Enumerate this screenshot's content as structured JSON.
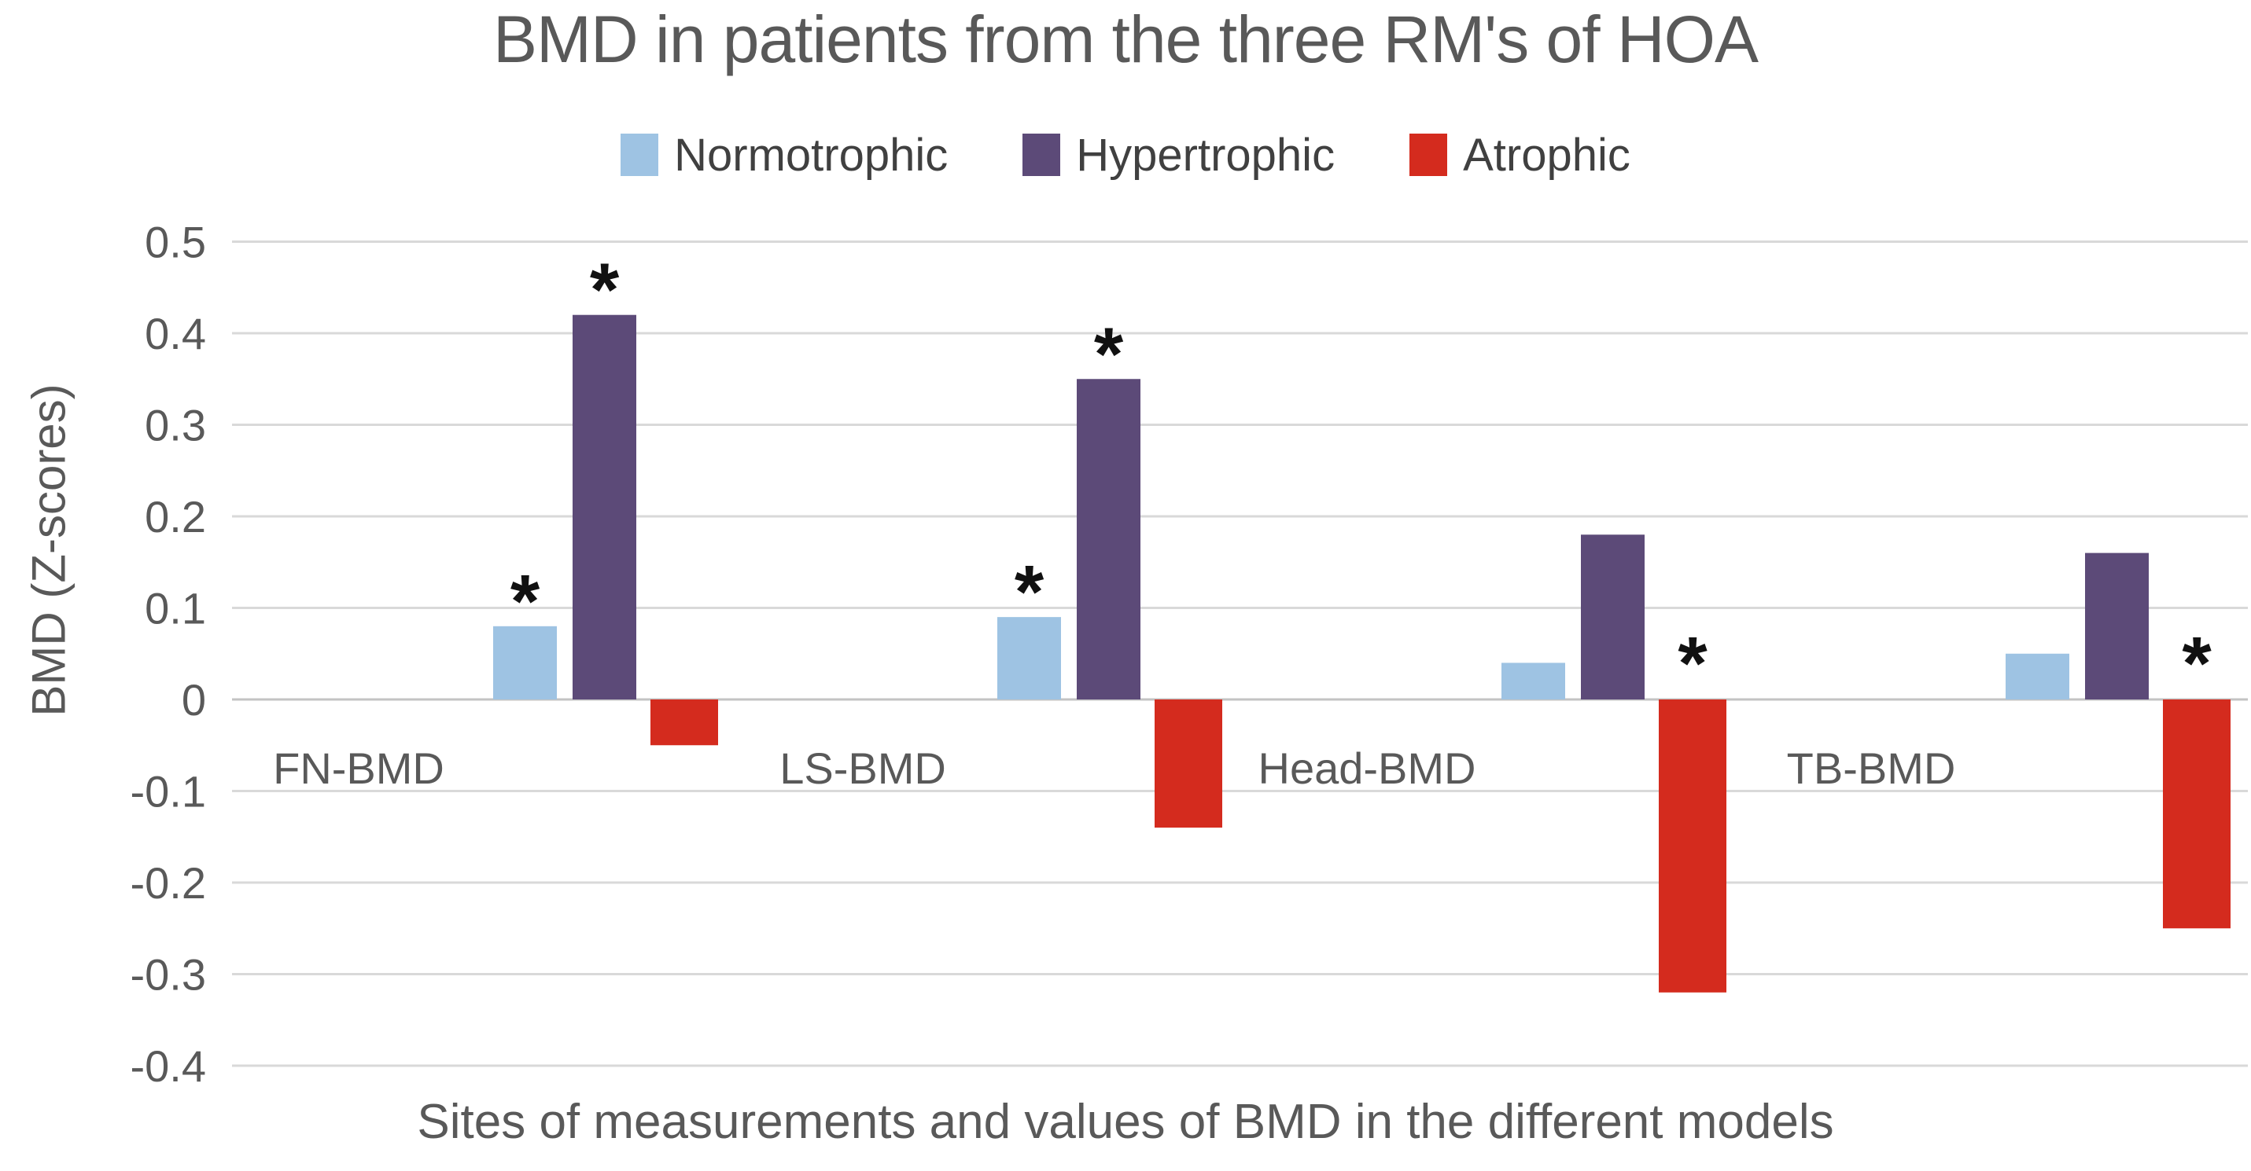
{
  "chart_data": {
    "type": "bar",
    "title": "BMD in patients from the three RM's of HOA",
    "xlabel": "Sites of measurements and values of BMD in the different models",
    "ylabel": "BMD (Z-scores)",
    "categories": [
      "FN-BMD",
      "LS-BMD",
      "Head-BMD",
      "TB-BMD"
    ],
    "series": [
      {
        "name": "Normotrophic",
        "color": "#9EC3E3",
        "values": [
          0.08,
          0.09,
          0.04,
          0.05
        ],
        "significant": [
          true,
          true,
          false,
          false
        ]
      },
      {
        "name": "Hypertrophic",
        "color": "#5C4A78",
        "values": [
          0.42,
          0.35,
          0.18,
          0.16
        ],
        "significant": [
          true,
          true,
          false,
          false
        ]
      },
      {
        "name": "Atrophic",
        "color": "#D42B1E",
        "values": [
          -0.05,
          -0.14,
          -0.32,
          -0.25
        ],
        "significant": [
          false,
          false,
          true,
          true
        ]
      }
    ],
    "ylim": [
      -0.4,
      0.5
    ],
    "yticks": [
      0.5,
      0.4,
      0.3,
      0.2,
      0.1,
      0,
      -0.1,
      -0.2,
      -0.3,
      -0.4
    ],
    "grid": true,
    "legend_position": "top",
    "significance_marker": "*"
  },
  "colors": {
    "text": "#595959",
    "legend_text": "#404040",
    "gridline": "#d9d9d9",
    "zero_line": "#c3c3c3",
    "marker": "#111111"
  }
}
